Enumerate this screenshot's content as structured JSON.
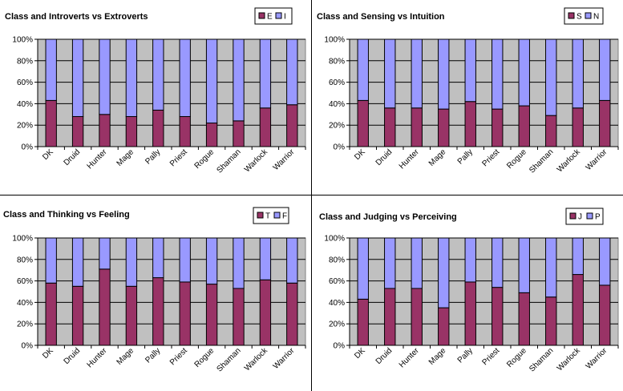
{
  "colors": {
    "bottom": "#993366",
    "top": "#9999FF",
    "plot_bg": "#C0C0C0",
    "grid": "#000000"
  },
  "chart_data": [
    {
      "type": "bar",
      "stacked": true,
      "percent": true,
      "title": "Class and Introverts vs Extroverts",
      "categories": [
        "DK",
        "Druid",
        "Hunter",
        "Mage",
        "Pally",
        "Priest",
        "Rogue",
        "Shaman",
        "Warlock",
        "Warrior"
      ],
      "series": [
        {
          "name": "E",
          "values": [
            43,
            28,
            30,
            28,
            34,
            28,
            22,
            24,
            36,
            39
          ]
        },
        {
          "name": "I",
          "values": [
            57,
            72,
            70,
            72,
            66,
            72,
            78,
            76,
            64,
            61
          ]
        }
      ],
      "ylim": [
        0,
        100
      ],
      "yticks": [
        "0%",
        "20%",
        "40%",
        "60%",
        "80%",
        "100%"
      ],
      "grid": true,
      "legend": "top-right"
    },
    {
      "type": "bar",
      "stacked": true,
      "percent": true,
      "title": "Class and Sensing vs Intuition",
      "categories": [
        "DK",
        "Druid",
        "Hunter",
        "Mage",
        "Pally",
        "Priest",
        "Rogue",
        "Shaman",
        "Warlock",
        "Warrior"
      ],
      "series": [
        {
          "name": "S",
          "values": [
            43,
            36,
            36,
            35,
            42,
            35,
            38,
            29,
            36,
            43
          ]
        },
        {
          "name": "N",
          "values": [
            57,
            64,
            64,
            65,
            58,
            65,
            62,
            71,
            64,
            57
          ]
        }
      ],
      "ylim": [
        0,
        100
      ],
      "yticks": [
        "0%",
        "20%",
        "40%",
        "60%",
        "80%",
        "100%"
      ],
      "grid": true,
      "legend": "top-right"
    },
    {
      "type": "bar",
      "stacked": true,
      "percent": true,
      "title": "Class and Thinking vs Feeling",
      "categories": [
        "DK",
        "Druid",
        "Hunter",
        "Mage",
        "Pally",
        "Priest",
        "Rogue",
        "Shaman",
        "Warlock",
        "Warrior"
      ],
      "series": [
        {
          "name": "T",
          "values": [
            58,
            55,
            71,
            55,
            63,
            59,
            57,
            53,
            61,
            58
          ]
        },
        {
          "name": "F",
          "values": [
            42,
            45,
            29,
            45,
            37,
            41,
            43,
            47,
            39,
            42
          ]
        }
      ],
      "ylim": [
        0,
        100
      ],
      "yticks": [
        "0%",
        "20%",
        "40%",
        "60%",
        "80%",
        "100%"
      ],
      "grid": true,
      "legend": "top-right"
    },
    {
      "type": "bar",
      "stacked": true,
      "percent": true,
      "title": "Class and Judging vs Perceiving",
      "categories": [
        "DK",
        "Druid",
        "Hunter",
        "Mage",
        "Pally",
        "Priest",
        "Rogue",
        "Shaman",
        "Warlock",
        "Warrior"
      ],
      "series": [
        {
          "name": "J",
          "values": [
            43,
            53,
            53,
            35,
            59,
            54,
            49,
            45,
            66,
            56
          ]
        },
        {
          "name": "P",
          "values": [
            57,
            47,
            47,
            65,
            41,
            46,
            51,
            55,
            34,
            44
          ]
        }
      ],
      "ylim": [
        0,
        100
      ],
      "yticks": [
        "0%",
        "20%",
        "40%",
        "60%",
        "80%",
        "100%"
      ],
      "grid": true,
      "legend": "top-right"
    }
  ]
}
